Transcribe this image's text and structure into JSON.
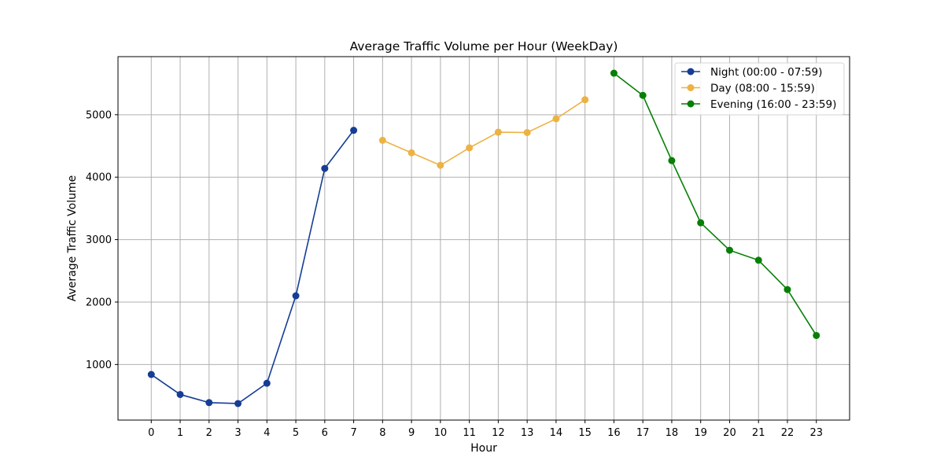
{
  "chart_data": {
    "type": "line",
    "title": "Average Traffic Volume per Hour (WeekDay)",
    "xlabel": "Hour",
    "ylabel": "Average Traffic Volume",
    "xlim": [
      -1.15,
      24.15
    ],
    "ylim": [
      110,
      5930
    ],
    "xticks": [
      0,
      1,
      2,
      3,
      4,
      5,
      6,
      7,
      8,
      9,
      10,
      11,
      12,
      13,
      14,
      15,
      16,
      17,
      18,
      19,
      20,
      21,
      22,
      23
    ],
    "yticks": [
      1000,
      2000,
      3000,
      4000,
      5000
    ],
    "grid": true,
    "legend_position": "top-right",
    "series": [
      {
        "name": "Night (00:00 - 07:59)",
        "color": "#163d96",
        "x": [
          0,
          1,
          2,
          3,
          4,
          5,
          6,
          7
        ],
        "values": [
          840,
          520,
          390,
          375,
          700,
          2100,
          4140,
          4750
        ]
      },
      {
        "name": "Day (08:00 - 15:59)",
        "color": "#edb244",
        "x": [
          8,
          9,
          10,
          11,
          12,
          13,
          14,
          15
        ],
        "values": [
          4590,
          4390,
          4190,
          4470,
          4720,
          4715,
          4935,
          5240
        ]
      },
      {
        "name": "Evening (16:00 - 23:59)",
        "color": "#057f05",
        "x": [
          16,
          17,
          18,
          19,
          20,
          21,
          22,
          23
        ],
        "values": [
          5665,
          5310,
          4265,
          3270,
          2830,
          2670,
          2200,
          1465
        ]
      }
    ]
  }
}
